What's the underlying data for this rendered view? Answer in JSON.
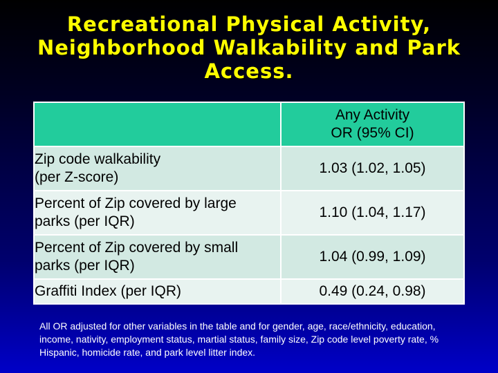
{
  "title": {
    "lines": [
      "Recreational Physical Activity,",
      "Neighborhood Walkability and Park",
      "Access."
    ]
  },
  "table": {
    "header": {
      "col1": "",
      "col2_line1": "Any Activity",
      "col2_line2": "OR (95% CI)"
    },
    "rows": [
      {
        "label_line1": "Zip code walkability",
        "label_line2": "(per Z-score)",
        "value": "1.03 (1.02, 1.05)"
      },
      {
        "label_line1": "Percent of Zip covered by large",
        "label_line2": "parks (per IQR)",
        "value": "1.10 (1.04, 1.17)"
      },
      {
        "label_line1": "Percent of Zip covered by small",
        "label_line2": "parks (per IQR)",
        "value": "1.04 (0.99, 1.09)"
      },
      {
        "label_line1": "Graffiti Index (per IQR)",
        "label_line2": "",
        "value": "0.49 (0.24, 0.98)"
      }
    ]
  },
  "footnote": "All OR adjusted for other variables in the table and for gender, age, race/ethnicity, education, income, nativity, employment status, martial status, family size, Zip code level poverty rate, % Hispanic, homicide rate, and park level litter index.",
  "colors": {
    "title": "#ffff00",
    "header_fill": "#22cc9c",
    "row_dark": "#d2e9e2",
    "row_light": "#e8f3f0"
  }
}
